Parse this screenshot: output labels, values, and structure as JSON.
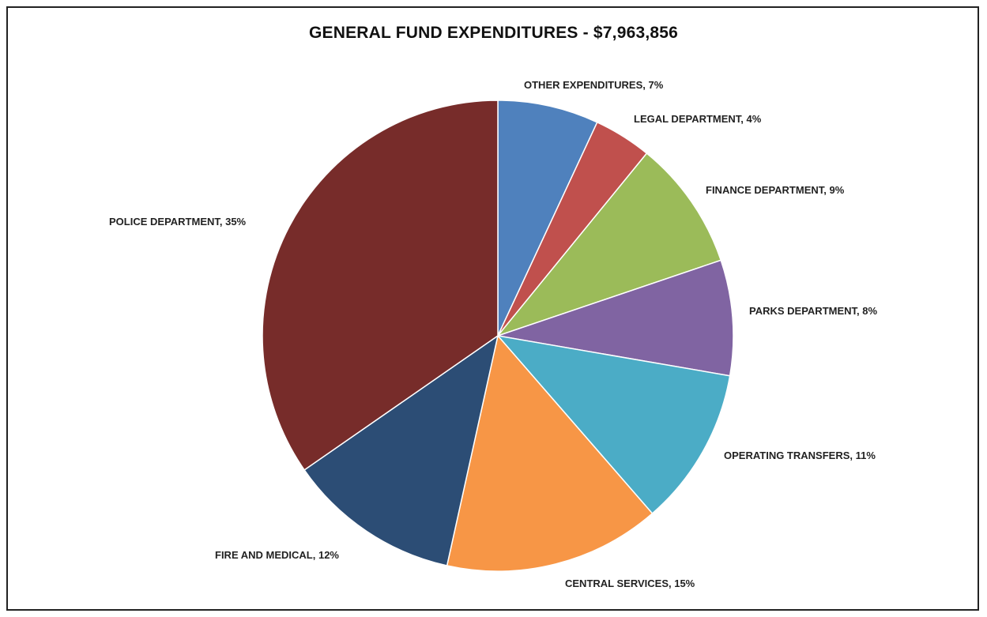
{
  "chart_data": {
    "type": "pie",
    "title": "GENERAL FUND EXPENDITURES - $7,963,856",
    "slices": [
      {
        "name": "OTHER EXPENDITURES",
        "value": 7,
        "label": "OTHER EXPENDITURES, 7%",
        "color": "#4F81BD"
      },
      {
        "name": "LEGAL DEPARTMENT",
        "value": 4,
        "label": "LEGAL DEPARTMENT, 4%",
        "color": "#C0504D"
      },
      {
        "name": "FINANCE DEPARTMENT",
        "value": 9,
        "label": "FINANCE DEPARTMENT, 9%",
        "color": "#9BBB59"
      },
      {
        "name": "PARKS DEPARTMENT",
        "value": 8,
        "label": "PARKS DEPARTMENT, 8%",
        "color": "#8064A2"
      },
      {
        "name": "OPERATING TRANSFERS",
        "value": 11,
        "label": "OPERATING TRANSFERS, 11%",
        "color": "#4BACC6"
      },
      {
        "name": "CENTRAL SERVICES",
        "value": 15,
        "label": "CENTRAL SERVICES, 15%",
        "color": "#F79646"
      },
      {
        "name": "FIRE AND MEDICAL",
        "value": 12,
        "label": "FIRE AND MEDICAL, 12%",
        "color": "#2C4D75"
      },
      {
        "name": "POLICE DEPARTMENT",
        "value": 35,
        "label": "POLICE DEPARTMENT, 35%",
        "color": "#772C2A"
      }
    ],
    "start_angle": "12 o'clock",
    "direction": "clockwise",
    "legend": "none"
  }
}
